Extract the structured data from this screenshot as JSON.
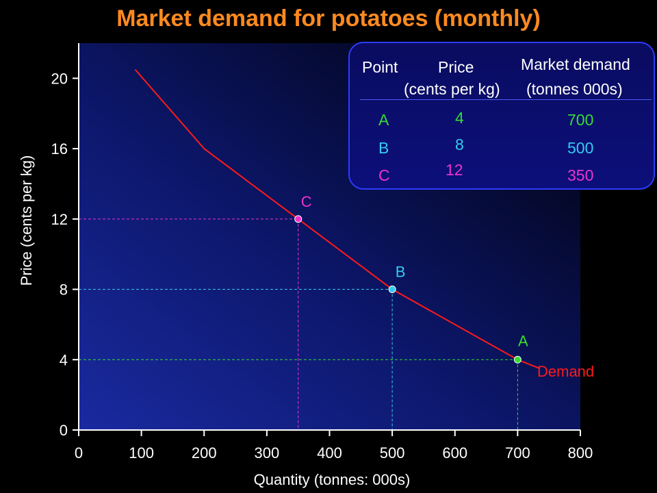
{
  "title": "Market demand for potatoes (monthly)",
  "colors": {
    "background": "#000000",
    "title": "#ff8a1f",
    "demand_line": "#ff1a1a",
    "point_a": "#33dd33",
    "point_b": "#33ccee",
    "point_c": "#ee33cc"
  },
  "chart_data": {
    "type": "line",
    "xlabel": "Quantity (tonnes: 000s)",
    "ylabel": "Price (cents per kg)",
    "xlim": [
      0,
      800
    ],
    "ylim": [
      0,
      22
    ],
    "xticks": [
      0,
      100,
      200,
      300,
      400,
      500,
      600,
      700,
      800
    ],
    "yticks": [
      0,
      4,
      8,
      12,
      16,
      20
    ],
    "series": [
      {
        "name": "Demand",
        "x": [
          90,
          200,
          350,
          500,
          700,
          735
        ],
        "y": [
          20.5,
          16,
          12,
          8,
          4,
          3.5
        ]
      }
    ],
    "points": [
      {
        "label": "A",
        "quantity": 700,
        "price": 4
      },
      {
        "label": "B",
        "quantity": 500,
        "price": 8
      },
      {
        "label": "C",
        "quantity": 350,
        "price": 12
      }
    ],
    "grid": false,
    "legend": "top-right"
  },
  "table": {
    "headers": {
      "point": "Point",
      "price_1": "Price",
      "price_2": "(cents per kg)",
      "demand_1": "Market demand",
      "demand_2": "(tonnes 000s)"
    },
    "rows": [
      {
        "point": "A",
        "price": "4",
        "demand": "700"
      },
      {
        "point": "B",
        "price": "8",
        "demand": "500"
      },
      {
        "point": "C",
        "price": "12",
        "demand": "350"
      }
    ]
  }
}
